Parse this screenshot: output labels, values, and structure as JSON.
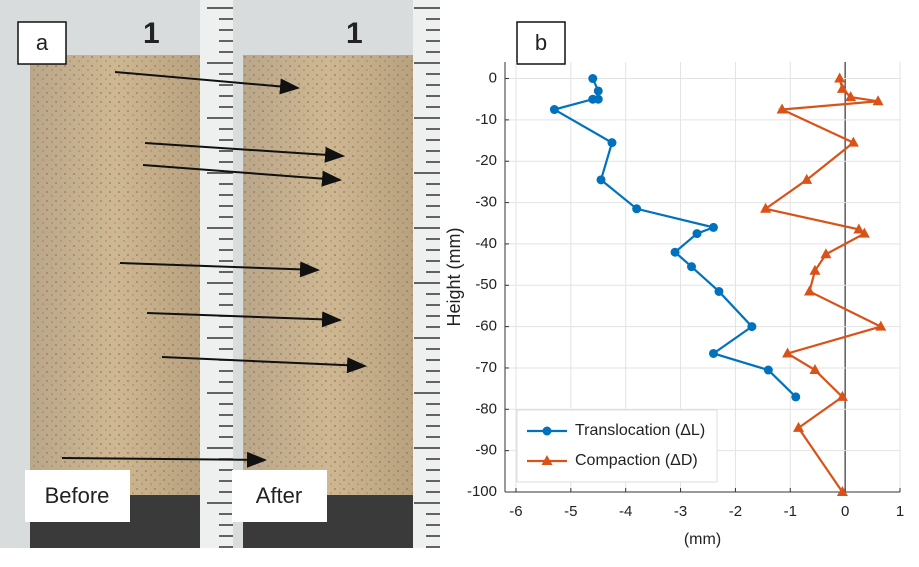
{
  "panel_labels": [
    "a",
    "b"
  ],
  "photo": {
    "tube_labels": [
      "1",
      "1"
    ],
    "labels": [
      "Before",
      "After"
    ]
  },
  "chart_data": {
    "type": "line",
    "xlabel": "(mm)",
    "ylabel": "Height (mm)",
    "xlim": [
      -6.2,
      1
    ],
    "ylim": [
      -100,
      4
    ],
    "xticks": [
      -6,
      -5,
      -4,
      -3,
      -2,
      -1,
      0,
      1
    ],
    "yticks": [
      0,
      -10,
      -20,
      -30,
      -40,
      -50,
      -60,
      -70,
      -80,
      -90,
      -100
    ],
    "grid": true,
    "legend": "lower left",
    "series": [
      {
        "name": "Translocation (ΔL)",
        "color": "#0072BD",
        "marker": "circle",
        "x": [
          -4.6,
          -4.5,
          -4.5,
          -4.6,
          -5.3,
          -4.25,
          -4.45,
          -3.8,
          -2.4,
          -2.7,
          -3.1,
          -2.8,
          -2.3,
          -1.7,
          -2.4,
          -1.4,
          -0.9
        ],
        "y": [
          0,
          -3,
          -5,
          -5,
          -7.5,
          -15.5,
          -24.5,
          -31.5,
          -36,
          -37.5,
          -42,
          -45.5,
          -51.5,
          -60,
          -66.5,
          -70.5,
          -77
        ]
      },
      {
        "name": "Compaction (ΔD)",
        "color": "#D95319",
        "marker": "triangle",
        "x": [
          -0.1,
          -0.05,
          0.1,
          0.6,
          -1.15,
          0.15,
          -0.7,
          -1.45,
          0.25,
          0.35,
          -0.35,
          -0.55,
          -0.65,
          0.65,
          -1.05,
          -0.55,
          -0.05,
          -0.85,
          -0.05
        ],
        "y": [
          0,
          -2.5,
          -4.5,
          -5.5,
          -7.5,
          -15.5,
          -24.5,
          -31.5,
          -36.5,
          -37.5,
          -42.5,
          -46.5,
          -51.5,
          -60,
          -66.5,
          -70.5,
          -77,
          -84.5,
          -100
        ]
      }
    ]
  }
}
